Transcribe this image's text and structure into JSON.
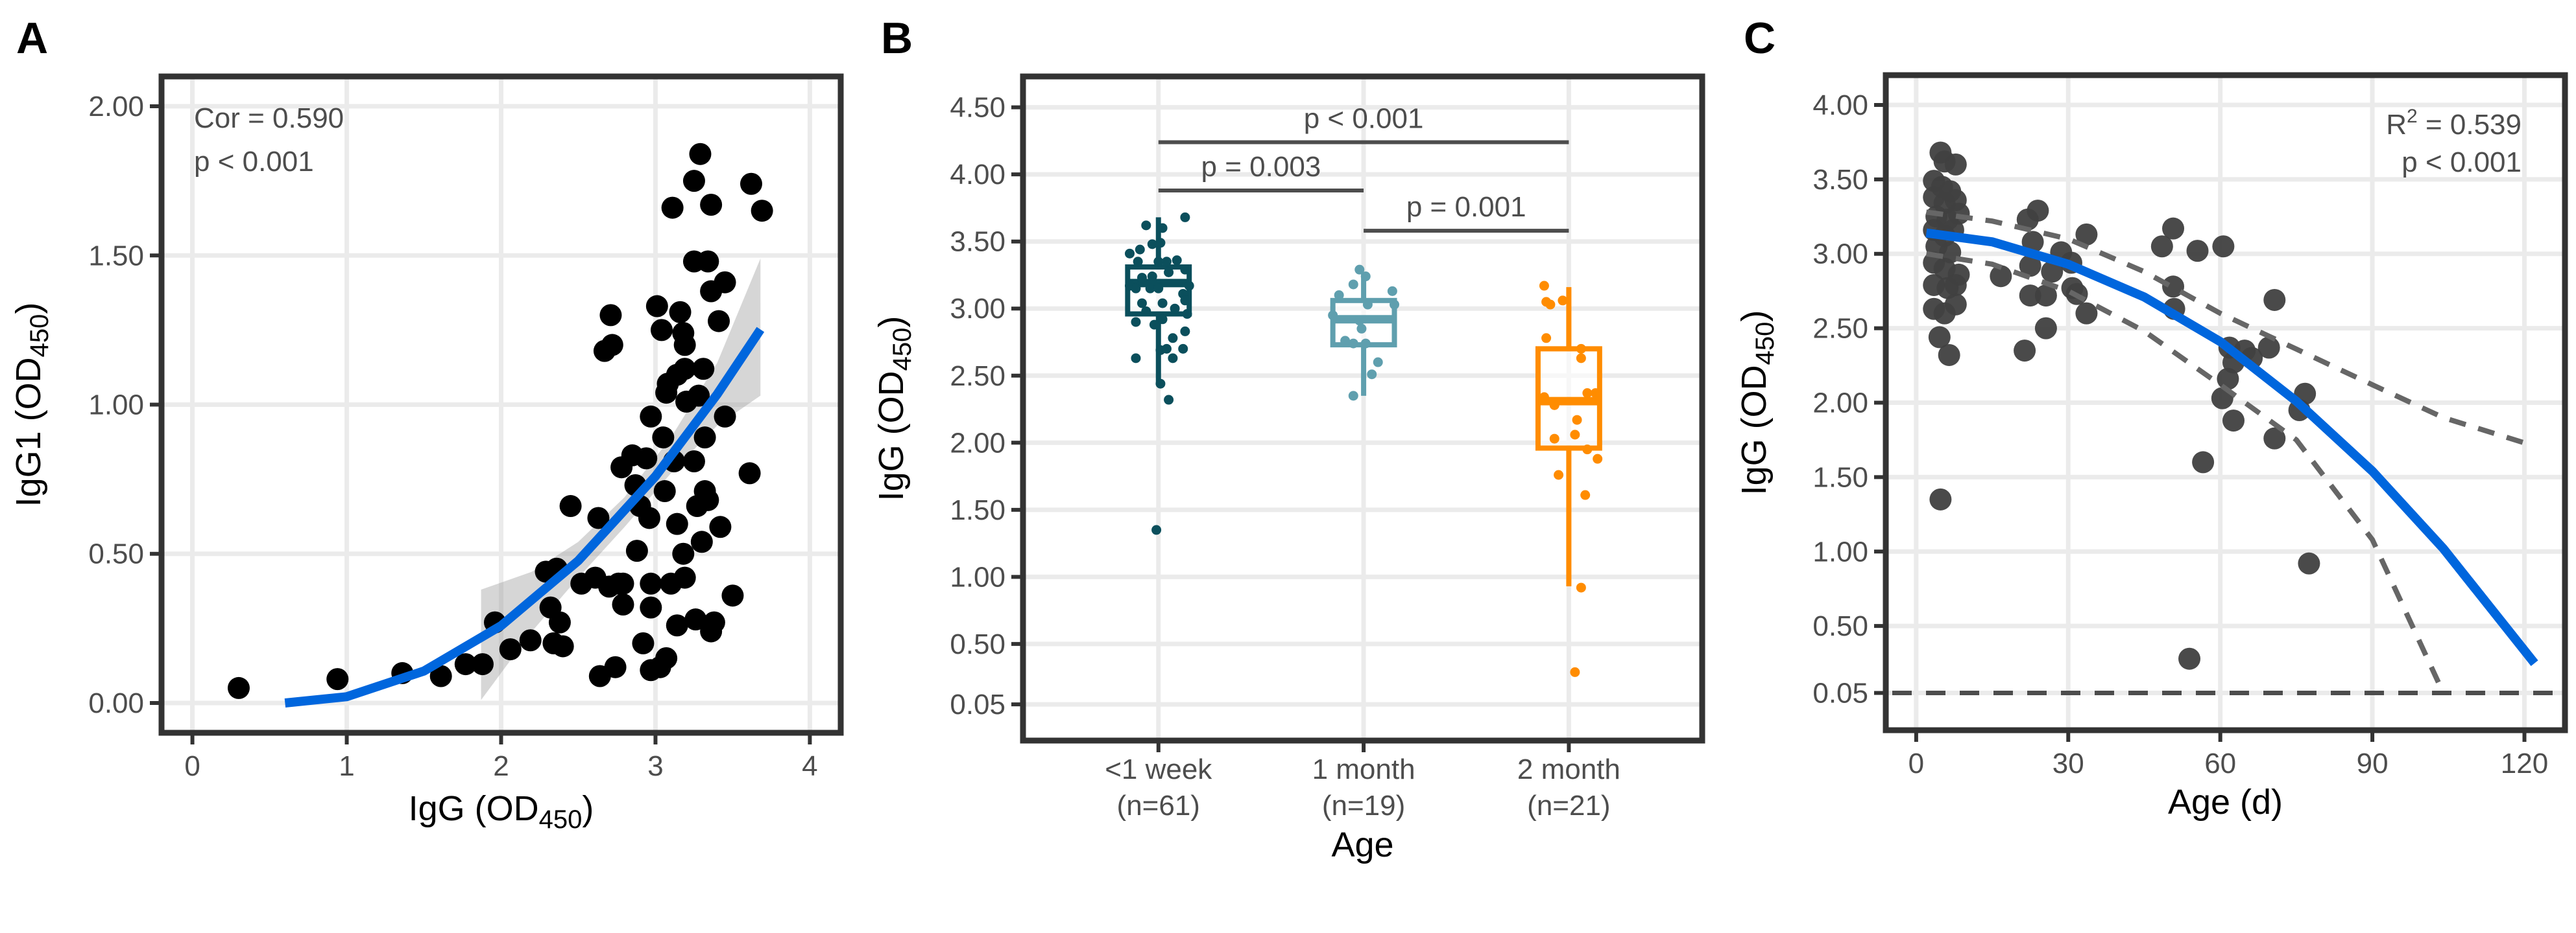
{
  "chart_data": [
    {
      "panel": "A",
      "type": "scatter",
      "xlabel": [
        "IgG (OD",
        "450",
        ")"
      ],
      "ylabel": [
        "IgG1 (OD",
        "450",
        ")"
      ],
      "xlim": [
        -0.2,
        4.2
      ],
      "ylim": [
        -0.1,
        2.1
      ],
      "xticks": [
        0,
        1,
        2,
        3,
        4
      ],
      "xtick_labels": [
        "0",
        "1",
        "2",
        "3",
        "4"
      ],
      "yticks": [
        0,
        0.5,
        1,
        1.5,
        2
      ],
      "ytick_labels": [
        "0.00",
        "0.50",
        "1.00",
        "1.50",
        "2.00"
      ],
      "grid": true,
      "annotations": [
        "Cor = 0.590",
        "p < 0.001"
      ],
      "point_color": "#000000",
      "fit_color": "#0066dd",
      "points": [
        [
          0.3,
          0.05
        ],
        [
          0.94,
          0.08
        ],
        [
          1.36,
          0.1
        ],
        [
          1.61,
          0.09
        ],
        [
          1.77,
          0.13
        ],
        [
          1.88,
          0.13
        ],
        [
          1.96,
          0.27
        ],
        [
          2.06,
          0.18
        ],
        [
          2.19,
          0.21
        ],
        [
          2.29,
          0.44
        ],
        [
          2.36,
          0.45
        ],
        [
          2.32,
          0.32
        ],
        [
          2.34,
          0.2
        ],
        [
          2.38,
          0.27
        ],
        [
          2.4,
          0.19
        ],
        [
          2.45,
          0.66
        ],
        [
          2.52,
          0.4
        ],
        [
          2.61,
          0.42
        ],
        [
          2.63,
          0.62
        ],
        [
          2.64,
          0.09
        ],
        [
          2.67,
          1.18
        ],
        [
          2.71,
          1.3
        ],
        [
          2.72,
          1.2
        ],
        [
          2.7,
          0.39
        ],
        [
          2.74,
          0.12
        ],
        [
          2.76,
          0.4
        ],
        [
          2.79,
          0.4
        ],
        [
          2.79,
          0.33
        ],
        [
          2.78,
          0.79
        ],
        [
          2.85,
          0.83
        ],
        [
          2.87,
          0.73
        ],
        [
          2.88,
          0.51
        ],
        [
          2.92,
          0.2
        ],
        [
          2.9,
          0.66
        ],
        [
          2.94,
          0.82
        ],
        [
          2.96,
          0.62
        ],
        [
          2.97,
          0.96
        ],
        [
          2.97,
          0.32
        ],
        [
          2.97,
          0.4
        ],
        [
          2.97,
          0.11
        ],
        [
          3.01,
          1.33
        ],
        [
          3.04,
          1.25
        ],
        [
          3.05,
          0.89
        ],
        [
          3.06,
          0.71
        ],
        [
          3.07,
          0.15
        ],
        [
          3.03,
          0.12
        ],
        [
          3.1,
          0.4
        ],
        [
          3.11,
          1.66
        ],
        [
          3.12,
          0.81
        ],
        [
          3.14,
          0.26
        ],
        [
          3.14,
          0.6
        ],
        [
          3.14,
          1.1
        ],
        [
          3.08,
          1.07
        ],
        [
          3.07,
          1.04
        ],
        [
          3.16,
          1.31
        ],
        [
          3.18,
          1.24
        ],
        [
          3.19,
          1.2
        ],
        [
          3.19,
          1.12
        ],
        [
          3.18,
          0.5
        ],
        [
          3.19,
          0.42
        ],
        [
          3.2,
          1.01
        ],
        [
          3.25,
          0.81
        ],
        [
          3.25,
          1.48
        ],
        [
          3.25,
          1.75
        ],
        [
          3.26,
          0.28
        ],
        [
          3.27,
          0.66
        ],
        [
          3.28,
          1.03
        ],
        [
          3.29,
          1.84
        ],
        [
          3.3,
          0.54
        ],
        [
          3.31,
          1.12
        ],
        [
          3.32,
          0.89
        ],
        [
          3.32,
          0.71
        ],
        [
          3.34,
          1.48
        ],
        [
          3.34,
          0.68
        ],
        [
          3.36,
          1.67
        ],
        [
          3.36,
          1.38
        ],
        [
          3.36,
          0.24
        ],
        [
          3.38,
          0.27
        ],
        [
          3.41,
          1.28
        ],
        [
          3.42,
          0.59
        ],
        [
          3.45,
          1.41
        ],
        [
          3.45,
          0.96
        ],
        [
          3.5,
          0.36
        ],
        [
          3.61,
          0.77
        ],
        [
          3.62,
          1.74
        ],
        [
          3.69,
          1.65
        ]
      ],
      "fit": {
        "x": [
          0.6,
          1.0,
          1.5,
          2.0,
          2.5,
          3.0,
          3.4,
          3.68
        ],
        "y": [
          0,
          0.021,
          0.107,
          0.259,
          0.477,
          0.76,
          1.035,
          1.252
        ]
      },
      "ci": {
        "x": [
          1.87,
          2.2,
          2.5,
          2.8,
          3.1,
          3.4,
          3.68
        ],
        "lower": [
          0.01,
          0.24,
          0.42,
          0.59,
          0.77,
          0.93,
          1.03
        ],
        "upper": [
          0.38,
          0.44,
          0.54,
          0.69,
          0.89,
          1.14,
          1.49
        ]
      }
    },
    {
      "panel": "B",
      "type": "box",
      "xlabel": "Age",
      "ylabel": [
        "IgG (OD",
        "450",
        ")"
      ],
      "xlim": [
        0.34,
        3.65
      ],
      "ylim": [
        -0.22,
        4.73
      ],
      "yticks": [
        0.05,
        0.5,
        1,
        1.5,
        2,
        2.5,
        3,
        3.5,
        4,
        4.5
      ],
      "ytick_labels": [
        "0.05",
        "0.50",
        "1.00",
        "1.50",
        "2.00",
        "2.50",
        "3.00",
        "3.50",
        "4.00",
        "4.50"
      ],
      "grid": true,
      "groups": [
        {
          "label": "<1 week",
          "n_label": "(n=61)",
          "color": "#0b4f5c",
          "whisker_low": 2.44,
          "q1": 2.96,
          "median": 3.19,
          "q3": 3.31,
          "whisker_high": 3.68,
          "points": [
            [
              -0.14,
              3.41
            ],
            [
              -0.09,
              3.44
            ],
            [
              -0.06,
              3.62
            ],
            [
              0.02,
              3.6
            ],
            [
              0.13,
              3.68
            ],
            [
              0.01,
              3.49
            ],
            [
              -0.1,
              3.35
            ],
            [
              -0.03,
              3.24
            ],
            [
              0.04,
              3.35
            ],
            [
              0.09,
              3.36
            ],
            [
              0.13,
              3.29
            ],
            [
              0.15,
              3.17
            ],
            [
              -0.08,
              3.23
            ],
            [
              -0.04,
              3.15
            ],
            [
              0.0,
              3.15
            ],
            [
              0.05,
              3.27
            ],
            [
              0.12,
              3.11
            ],
            [
              -0.14,
              3.17
            ],
            [
              0.02,
              3.04
            ],
            [
              0.08,
              3.0
            ],
            [
              0.13,
              3.06
            ],
            [
              -0.11,
              2.9
            ],
            [
              -0.02,
              2.88
            ],
            [
              0.02,
              2.92
            ],
            [
              0.07,
              2.78
            ],
            [
              0.13,
              2.83
            ],
            [
              -0.11,
              2.63
            ],
            [
              0.01,
              2.69
            ],
            [
              0.04,
              2.7
            ],
            [
              0.07,
              2.63
            ],
            [
              0.12,
              2.7
            ],
            [
              0.01,
              2.44
            ],
            [
              0.05,
              2.32
            ],
            [
              -0.01,
              1.35
            ],
            [
              0.14,
              2.96
            ],
            [
              -0.08,
              3.04
            ],
            [
              -0.06,
              2.98
            ],
            [
              0.0,
              3.35
            ],
            [
              -0.03,
              3.48
            ],
            [
              -0.11,
              3.15
            ]
          ]
        },
        {
          "label": "1 month",
          "n_label": "(n=19)",
          "color": "#5f9fae",
          "whisker_low": 2.35,
          "q1": 2.73,
          "median": 2.92,
          "q3": 3.06,
          "whisker_high": 3.27,
          "points": [
            [
              -0.02,
              3.29
            ],
            [
              0.01,
              3.24
            ],
            [
              -0.12,
              3.1
            ],
            [
              -0.05,
              3.18
            ],
            [
              0.14,
              3.13
            ],
            [
              -0.15,
              2.95
            ],
            [
              0.02,
              3.03
            ],
            [
              0.15,
              3.03
            ],
            [
              -0.02,
              2.91
            ],
            [
              -0.01,
              2.85
            ],
            [
              -0.09,
              2.76
            ],
            [
              -0.05,
              2.74
            ],
            [
              0.01,
              2.74
            ],
            [
              0.07,
              2.6
            ],
            [
              0.04,
              2.51
            ],
            [
              -0.05,
              2.35
            ]
          ]
        },
        {
          "label": "2 month",
          "n_label": "(n=21)",
          "color": "#ff8c00",
          "whisker_low": 0.93,
          "q1": 1.96,
          "median": 2.31,
          "q3": 2.7,
          "whisker_high": 3.16,
          "points": [
            [
              -0.12,
              3.17
            ],
            [
              -0.11,
              3.05
            ],
            [
              -0.09,
              3.03
            ],
            [
              -0.03,
              3.06
            ],
            [
              -0.11,
              2.78
            ],
            [
              0.06,
              2.7
            ],
            [
              0.06,
              2.63
            ],
            [
              -0.12,
              2.34
            ],
            [
              -0.07,
              2.28
            ],
            [
              0.09,
              2.37
            ],
            [
              0.13,
              2.37
            ],
            [
              0.04,
              2.17
            ],
            [
              -0.07,
              2.03
            ],
            [
              0.03,
              2.06
            ],
            [
              0.09,
              1.95
            ],
            [
              0.14,
              1.88
            ],
            [
              -0.05,
              1.76
            ],
            [
              0.08,
              1.61
            ],
            [
              0.06,
              0.92
            ],
            [
              0.03,
              0.29
            ]
          ]
        }
      ],
      "comparisons": [
        {
          "from": 1,
          "to": 3,
          "y": 4.24,
          "label": "p < 0.001"
        },
        {
          "from": 1,
          "to": 2,
          "y": 3.88,
          "label": "p = 0.003"
        },
        {
          "from": 2,
          "to": 3,
          "y": 3.58,
          "label": "p = 0.001"
        }
      ]
    },
    {
      "panel": "C",
      "type": "scatter",
      "xlabel": "Age (d)",
      "ylabel": [
        "IgG (OD",
        "450",
        ")"
      ],
      "xlim": [
        -6,
        128
      ],
      "ylim": [
        -0.2,
        4.2
      ],
      "xticks": [
        0,
        30,
        60,
        90,
        120
      ],
      "xtick_labels": [
        "0",
        "30",
        "60",
        "90",
        "120"
      ],
      "yticks": [
        0.05,
        0.5,
        1,
        1.5,
        2,
        2.5,
        3,
        3.5,
        4
      ],
      "ytick_labels": [
        "0.05",
        "0.50",
        "1.00",
        "1.50",
        "2.00",
        "2.50",
        "3.00",
        "3.50",
        "4.00"
      ],
      "grid": true,
      "r2_prefix": "R",
      "r2_sup": "2",
      "r2_rest": " = 0.539",
      "p_label": "p < 0.001",
      "point_color": "#404040",
      "fit_color": "#0066dd",
      "hline": 0.05,
      "points": [
        [
          4.8,
          3.68
        ],
        [
          5.6,
          3.62
        ],
        [
          7.8,
          3.6
        ],
        [
          3.5,
          3.49
        ],
        [
          5.1,
          3.45
        ],
        [
          6.7,
          3.42
        ],
        [
          3.5,
          3.38
        ],
        [
          5.6,
          3.34
        ],
        [
          7.8,
          3.36
        ],
        [
          4.0,
          3.25
        ],
        [
          6.2,
          3.23
        ],
        [
          8.4,
          3.27
        ],
        [
          3.5,
          3.16
        ],
        [
          5.6,
          3.12
        ],
        [
          7.3,
          3.16
        ],
        [
          4.0,
          3.05
        ],
        [
          6.7,
          3.01
        ],
        [
          3.5,
          2.94
        ],
        [
          5.6,
          2.9
        ],
        [
          8.4,
          2.86
        ],
        [
          3.5,
          2.79
        ],
        [
          6.2,
          2.77
        ],
        [
          7.8,
          2.79
        ],
        [
          3.5,
          2.63
        ],
        [
          5.6,
          2.6
        ],
        [
          7.8,
          2.66
        ],
        [
          4.6,
          2.44
        ],
        [
          6.5,
          2.32
        ],
        [
          4.8,
          1.35
        ],
        [
          16.7,
          2.85
        ],
        [
          21.4,
          2.35
        ],
        [
          22.5,
          2.72
        ],
        [
          22.5,
          2.92
        ],
        [
          23.0,
          3.08
        ],
        [
          22.0,
          3.23
        ],
        [
          24.0,
          3.29
        ],
        [
          25.6,
          2.72
        ],
        [
          25.6,
          2.5
        ],
        [
          26.8,
          2.88
        ],
        [
          28.6,
          3.01
        ],
        [
          30.6,
          2.94
        ],
        [
          30.8,
          2.77
        ],
        [
          31.7,
          2.73
        ],
        [
          33.6,
          2.6
        ],
        [
          33.6,
          3.13
        ],
        [
          48.5,
          3.05
        ],
        [
          50.7,
          3.17
        ],
        [
          50.7,
          2.78
        ],
        [
          50.9,
          2.63
        ],
        [
          55.5,
          3.02
        ],
        [
          53.9,
          0.28
        ],
        [
          56.6,
          1.6
        ],
        [
          60.6,
          3.05
        ],
        [
          60.4,
          2.03
        ],
        [
          61.8,
          2.37
        ],
        [
          61.5,
          2.16
        ],
        [
          62.6,
          2.27
        ],
        [
          62.6,
          1.88
        ],
        [
          64.8,
          2.35
        ],
        [
          66.2,
          2.3
        ],
        [
          69.6,
          2.37
        ],
        [
          70.7,
          2.69
        ],
        [
          70.7,
          1.76
        ],
        [
          75.6,
          1.95
        ],
        [
          76.7,
          2.06
        ],
        [
          77.5,
          0.92
        ]
      ],
      "fit": {
        "x": [
          2,
          15,
          30,
          45,
          60,
          75,
          90,
          104,
          122
        ],
        "y": [
          3.14,
          3.08,
          2.93,
          2.71,
          2.41,
          2.01,
          1.54,
          1.02,
          0.25
        ]
      },
      "ci_upper": {
        "x": [
          2,
          15,
          30,
          45,
          60,
          75,
          90,
          104,
          120
        ],
        "y": [
          3.28,
          3.22,
          3.1,
          2.88,
          2.6,
          2.36,
          2.12,
          1.9,
          1.73
        ]
      },
      "ci_lower": {
        "x": [
          2,
          15,
          30,
          45,
          60,
          75,
          90,
          104
        ],
        "y": [
          3.0,
          2.93,
          2.75,
          2.48,
          2.12,
          1.75,
          1.08,
          0.05
        ]
      }
    }
  ],
  "panel_letters": [
    "A",
    "B",
    "C"
  ]
}
